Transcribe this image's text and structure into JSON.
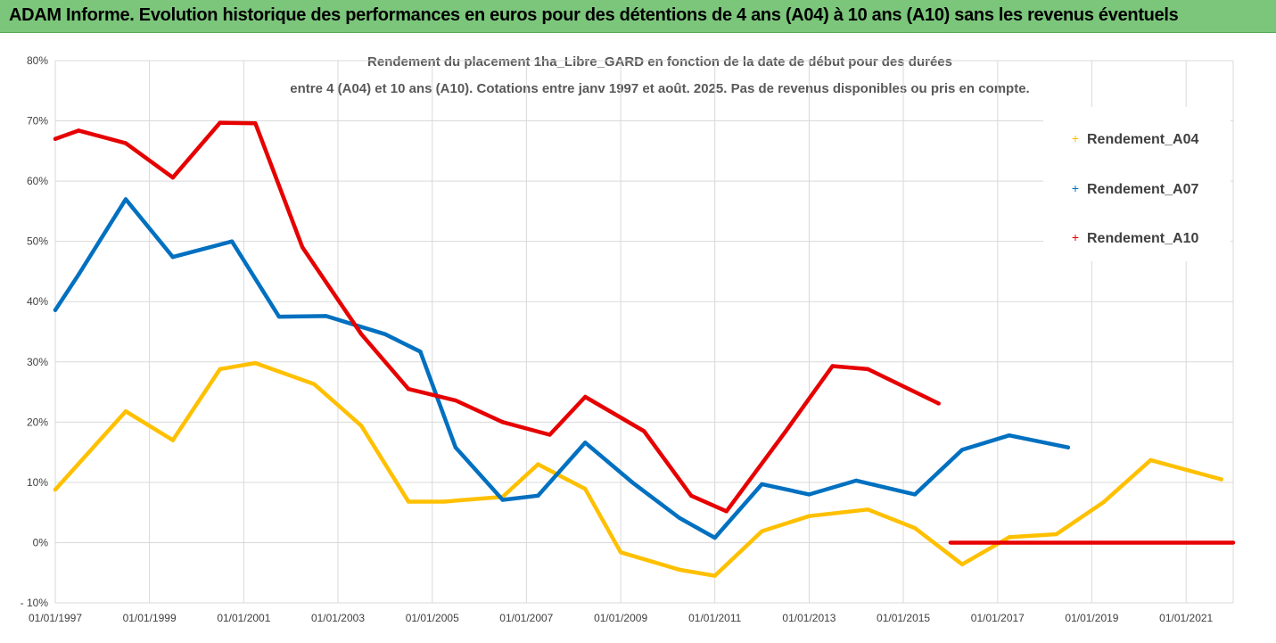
{
  "banner": {
    "title": "ADAM Informe. Evolution historique des performances en euros pour des détentions de 4 ans (A04) à 10 ans (A10) sans les revenus éventuels"
  },
  "chart_data": {
    "type": "line",
    "title": "Rendement du placement 1ha_Libre_GARD en fonction de la date de début pour des durées",
    "subtitle": "entre 4 (A04) et 10 ans (A10). Cotations entre janv 1997 et août. 2025. Pas de revenus disponibles ou pris en compte.",
    "xlabel": "",
    "ylabel": "",
    "xlim": [
      "1997-01-01",
      "2022-01-01"
    ],
    "ylim": [
      -10,
      80
    ],
    "grid": true,
    "legend_position": "right",
    "x_ticks": [
      "01/01/1997",
      "01/01/1999",
      "01/01/2001",
      "01/01/2003",
      "01/01/2005",
      "01/01/2007",
      "01/01/2009",
      "01/01/2011",
      "01/01/2013",
      "01/01/2015",
      "01/01/2017",
      "01/01/2019",
      "01/01/2021"
    ],
    "y_ticks": [
      "80%",
      "70%",
      "60%",
      "50%",
      "40%",
      "30%",
      "20%",
      "10%",
      "0%",
      "- 10%"
    ],
    "y_tick_values": [
      80,
      70,
      60,
      50,
      40,
      30,
      20,
      10,
      0,
      -10
    ],
    "series": [
      {
        "name": "Rendement_A04",
        "color": "#ffc000",
        "points": [
          [
            "1997-01-01",
            8.8
          ],
          [
            "1998-07-01",
            21.8
          ],
          [
            "1999-07-01",
            17.0
          ],
          [
            "2000-07-01",
            28.8
          ],
          [
            "2001-04-01",
            29.8
          ],
          [
            "2002-07-01",
            26.3
          ],
          [
            "2003-07-01",
            19.4
          ],
          [
            "2004-07-01",
            6.8
          ],
          [
            "2005-04-01",
            6.8
          ],
          [
            "2006-07-01",
            7.6
          ],
          [
            "2007-04-01",
            13.0
          ],
          [
            "2008-04-01",
            8.9
          ],
          [
            "2009-01-01",
            -1.6
          ],
          [
            "2010-04-01",
            -4.5
          ],
          [
            "2011-01-01",
            -5.5
          ],
          [
            "2012-01-01",
            1.9
          ],
          [
            "2013-01-01",
            4.4
          ],
          [
            "2014-04-01",
            5.5
          ],
          [
            "2015-04-01",
            2.4
          ],
          [
            "2016-04-01",
            -3.6
          ],
          [
            "2017-04-01",
            0.9
          ],
          [
            "2018-04-01",
            1.4
          ],
          [
            "2019-04-01",
            6.7
          ],
          [
            "2020-04-01",
            13.7
          ],
          [
            "2021-10-01",
            10.5
          ]
        ]
      },
      {
        "name": "Rendement_A07",
        "color": "#0070c0",
        "points": [
          [
            "1997-01-01",
            38.6
          ],
          [
            "1997-07-01",
            44.5
          ],
          [
            "1998-07-01",
            57.0
          ],
          [
            "1999-07-01",
            47.4
          ],
          [
            "2000-10-01",
            50.0
          ],
          [
            "2001-10-01",
            37.5
          ],
          [
            "2002-10-01",
            37.6
          ],
          [
            "2004-01-01",
            34.6
          ],
          [
            "2004-10-01",
            31.7
          ],
          [
            "2005-07-01",
            15.8
          ],
          [
            "2006-07-01",
            7.1
          ],
          [
            "2007-04-01",
            7.8
          ],
          [
            "2008-04-01",
            16.6
          ],
          [
            "2009-04-01",
            10.0
          ],
          [
            "2010-04-01",
            4.1
          ],
          [
            "2011-01-01",
            0.8
          ],
          [
            "2012-01-01",
            9.7
          ],
          [
            "2013-01-01",
            8.0
          ],
          [
            "2014-01-01",
            10.3
          ],
          [
            "2015-04-01",
            8.0
          ],
          [
            "2016-04-01",
            15.4
          ],
          [
            "2017-04-01",
            17.8
          ],
          [
            "2018-07-01",
            15.8
          ]
        ]
      },
      {
        "name": "Rendement_A10",
        "color": "#e60000",
        "points": [
          [
            "1997-01-01",
            67.0
          ],
          [
            "1997-07-01",
            68.4
          ],
          [
            "1998-07-01",
            66.3
          ],
          [
            "1999-07-01",
            60.6
          ],
          [
            "2000-07-01",
            69.7
          ],
          [
            "2001-04-01",
            69.6
          ],
          [
            "2002-04-01",
            49.0
          ],
          [
            "2003-07-01",
            34.6
          ],
          [
            "2004-07-01",
            25.5
          ],
          [
            "2005-07-01",
            23.6
          ],
          [
            "2006-07-01",
            20.0
          ],
          [
            "2007-07-01",
            17.9
          ],
          [
            "2008-04-01",
            24.2
          ],
          [
            "2009-07-01",
            18.5
          ],
          [
            "2010-07-01",
            7.8
          ],
          [
            "2011-04-01",
            5.2
          ],
          [
            "2012-07-01",
            18.4
          ],
          [
            "2013-07-01",
            29.3
          ],
          [
            "2014-04-01",
            28.8
          ],
          [
            "2015-10-01",
            23.1
          ]
        ],
        "flat_segment": {
          "from": "2016-01-01",
          "to": "2022-01-01",
          "value": 0.0
        }
      }
    ]
  }
}
